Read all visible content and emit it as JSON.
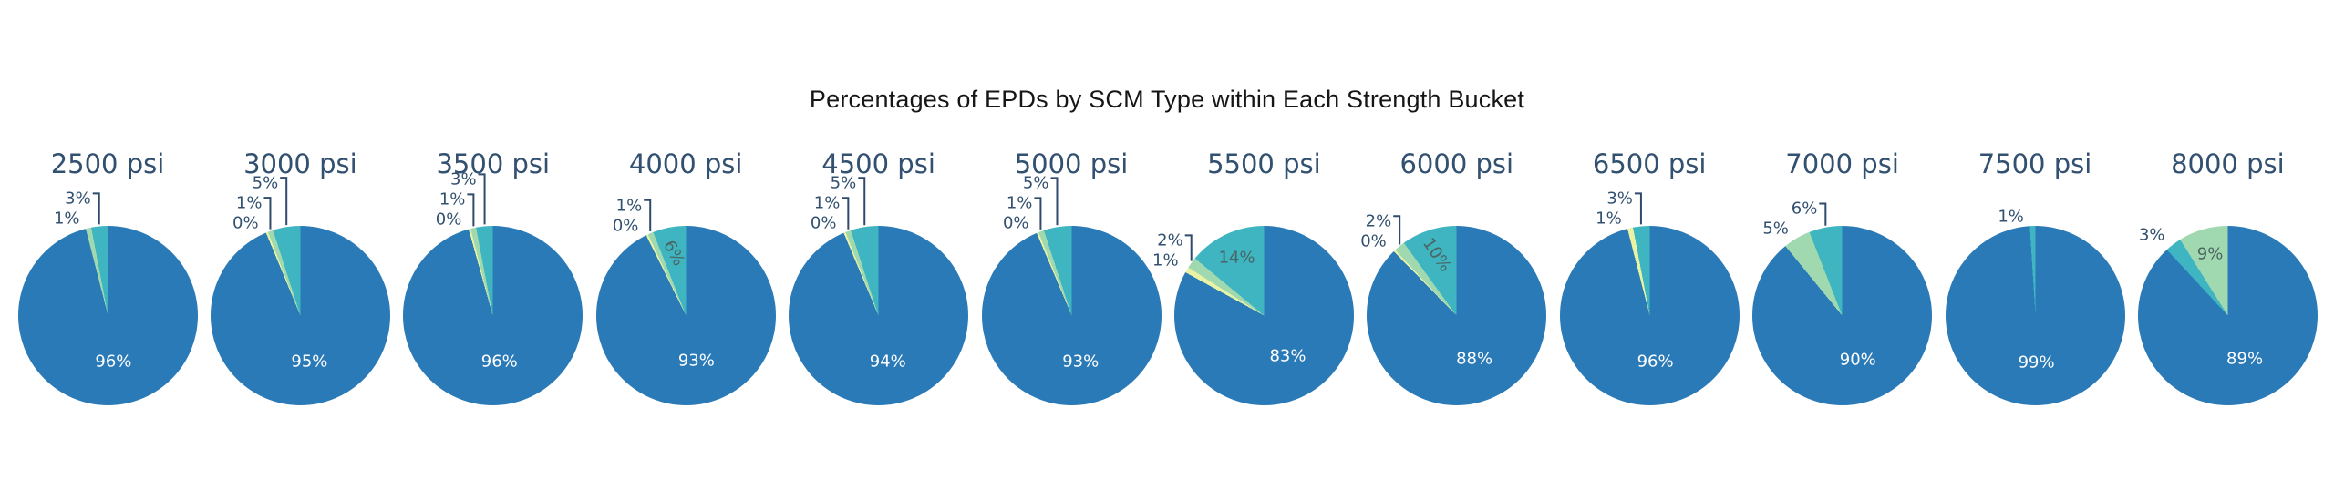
{
  "title": "Percentages of EPDs by SCM Type within Each Strength Bucket",
  "colors": {
    "blue": "#2b7ab8",
    "teal": "#3eb5c1",
    "green": "#a0d8b0",
    "yellow": "#e9f3a3",
    "label_slate": "#32506f",
    "leader_line": "#2f4a6b",
    "inside_light": "#ffffff",
    "inside_dark": "#4a6462",
    "main_title": "#161616"
  },
  "chart_data": [
    {
      "type": "pie",
      "title": "2500 psi",
      "slices": [
        {
          "scm": "blue",
          "value": 96,
          "label": "96%",
          "label_pos": "inside"
        },
        {
          "scm": "green",
          "value": 1,
          "label": "1%",
          "label_pos": "outside"
        },
        {
          "scm": "teal",
          "value": 3,
          "label": "3%",
          "label_pos": "outside"
        }
      ]
    },
    {
      "type": "pie",
      "title": "3000 psi",
      "slices": [
        {
          "scm": "blue",
          "value": 95,
          "label": "95%",
          "label_pos": "inside"
        },
        {
          "scm": "yellow",
          "value": 0,
          "label": "0%",
          "label_pos": "outside"
        },
        {
          "scm": "green",
          "value": 1,
          "label": "1%",
          "label_pos": "outside"
        },
        {
          "scm": "teal",
          "value": 5,
          "label": "5%",
          "label_pos": "outside"
        }
      ]
    },
    {
      "type": "pie",
      "title": "3500 psi",
      "slices": [
        {
          "scm": "blue",
          "value": 96,
          "label": "96%",
          "label_pos": "inside"
        },
        {
          "scm": "yellow",
          "value": 0,
          "label": "0%",
          "label_pos": "outside"
        },
        {
          "scm": "green",
          "value": 1,
          "label": "1%",
          "label_pos": "outside"
        },
        {
          "scm": "teal",
          "value": 3,
          "label": "3%",
          "label_pos": "outside"
        }
      ]
    },
    {
      "type": "pie",
      "title": "4000 psi",
      "slices": [
        {
          "scm": "blue",
          "value": 93,
          "label": "93%",
          "label_pos": "inside"
        },
        {
          "scm": "yellow",
          "value": 0,
          "label": "0%",
          "label_pos": "outside"
        },
        {
          "scm": "green",
          "value": 1,
          "label": "1%",
          "label_pos": "outside"
        },
        {
          "scm": "teal",
          "value": 6,
          "label": "6%",
          "label_pos": "inside",
          "label_rot": 62
        }
      ]
    },
    {
      "type": "pie",
      "title": "4500 psi",
      "slices": [
        {
          "scm": "blue",
          "value": 94,
          "label": "94%",
          "label_pos": "inside"
        },
        {
          "scm": "yellow",
          "value": 0,
          "label": "0%",
          "label_pos": "outside"
        },
        {
          "scm": "green",
          "value": 1,
          "label": "1%",
          "label_pos": "outside"
        },
        {
          "scm": "teal",
          "value": 5,
          "label": "5%",
          "label_pos": "outside"
        }
      ]
    },
    {
      "type": "pie",
      "title": "5000 psi",
      "slices": [
        {
          "scm": "blue",
          "value": 93,
          "label": "93%",
          "label_pos": "inside"
        },
        {
          "scm": "yellow",
          "value": 0,
          "label": "0%",
          "label_pos": "outside"
        },
        {
          "scm": "green",
          "value": 1,
          "label": "1%",
          "label_pos": "outside"
        },
        {
          "scm": "teal",
          "value": 5,
          "label": "5%",
          "label_pos": "outside"
        }
      ]
    },
    {
      "type": "pie",
      "title": "5500 psi",
      "slices": [
        {
          "scm": "blue",
          "value": 83,
          "label": "83%",
          "label_pos": "inside"
        },
        {
          "scm": "yellow",
          "value": 1,
          "label": "1%",
          "label_pos": "outside"
        },
        {
          "scm": "green",
          "value": 2,
          "label": "2%",
          "label_pos": "outside"
        },
        {
          "scm": "teal",
          "value": 14,
          "label": "14%",
          "label_pos": "inside"
        }
      ]
    },
    {
      "type": "pie",
      "title": "6000 psi",
      "slices": [
        {
          "scm": "blue",
          "value": 88,
          "label": "88%",
          "label_pos": "inside"
        },
        {
          "scm": "yellow",
          "value": 0,
          "label": "0%",
          "label_pos": "outside"
        },
        {
          "scm": "green",
          "value": 2,
          "label": "2%",
          "label_pos": "outside"
        },
        {
          "scm": "teal",
          "value": 10,
          "label": "10%",
          "label_pos": "inside",
          "label_rot": 56
        }
      ]
    },
    {
      "type": "pie",
      "title": "6500 psi",
      "slices": [
        {
          "scm": "blue",
          "value": 96,
          "label": "96%",
          "label_pos": "inside"
        },
        {
          "scm": "yellow",
          "value": 1,
          "label": "1%",
          "label_pos": "outside"
        },
        {
          "scm": "teal",
          "value": 3,
          "label": "3%",
          "label_pos": "outside"
        }
      ]
    },
    {
      "type": "pie",
      "title": "7000 psi",
      "slices": [
        {
          "scm": "blue",
          "value": 90,
          "label": "90%",
          "label_pos": "inside"
        },
        {
          "scm": "green",
          "value": 5,
          "label": "5%",
          "label_pos": "outside"
        },
        {
          "scm": "teal",
          "value": 6,
          "label": "6%",
          "label_pos": "outside"
        }
      ]
    },
    {
      "type": "pie",
      "title": "7500 psi",
      "slices": [
        {
          "scm": "blue",
          "value": 99,
          "label": "99%",
          "label_pos": "inside"
        },
        {
          "scm": "teal",
          "value": 1,
          "label": "1%",
          "label_pos": "outside"
        }
      ]
    },
    {
      "type": "pie",
      "title": "8000 psi",
      "slices": [
        {
          "scm": "blue",
          "value": 89,
          "label": "89%",
          "label_pos": "inside"
        },
        {
          "scm": "teal",
          "value": 3,
          "label": "3%",
          "label_pos": "outside"
        },
        {
          "scm": "green",
          "value": 9,
          "label": "9%",
          "label_pos": "inside"
        }
      ]
    }
  ]
}
